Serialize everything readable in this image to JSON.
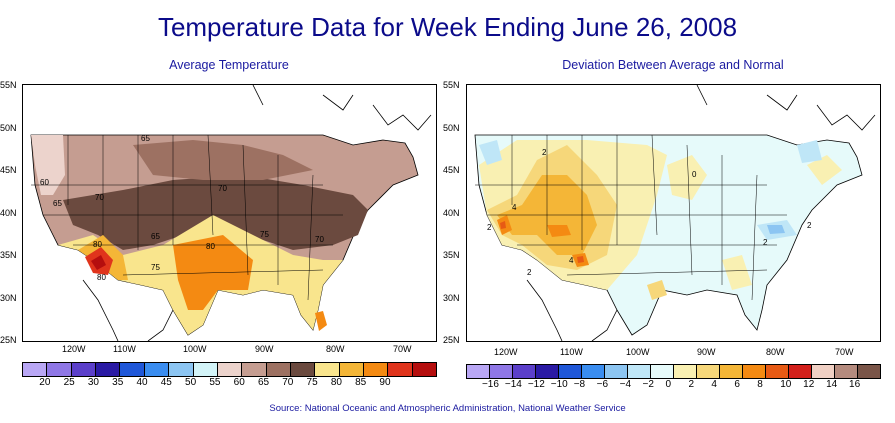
{
  "title": "Temperature Data for Week Ending June 26, 2008",
  "left_map": {
    "subtitle": "Average Temperature",
    "lat_labels": [
      "55N",
      "50N",
      "45N",
      "40N",
      "35N",
      "30N",
      "25N"
    ],
    "lon_labels": [
      "120W",
      "110W",
      "100W",
      "90W",
      "80W",
      "70W"
    ],
    "contour_labels": [
      "65",
      "60",
      "65",
      "70",
      "70",
      "65",
      "80",
      "75",
      "75",
      "70",
      "80",
      "80"
    ],
    "legend": {
      "ticks": [
        "20",
        "25",
        "30",
        "35",
        "40",
        "45",
        "50",
        "55",
        "60",
        "65",
        "70",
        "75",
        "80",
        "85",
        "90"
      ],
      "colors": [
        "#b9a7f5",
        "#8f77e6",
        "#5b3fca",
        "#2a1aa4",
        "#1f57d8",
        "#3a8df0",
        "#8cc5f2",
        "#d3f4f8",
        "#ecd3cc",
        "#c59d91",
        "#9d7162",
        "#6b4a3f",
        "#f9e58d",
        "#f4b637",
        "#f48a12",
        "#e0341c",
        "#b50e0e"
      ]
    }
  },
  "right_map": {
    "subtitle": "Deviation Between Average and Normal",
    "lat_labels": [
      "55N",
      "50N",
      "45N",
      "40N",
      "35N",
      "30N",
      "25N"
    ],
    "lon_labels": [
      "120W",
      "110W",
      "100W",
      "90W",
      "80W",
      "70W"
    ],
    "contour_labels": [
      "2",
      "2",
      "4",
      "2",
      "4",
      "0",
      "2",
      "2"
    ],
    "legend": {
      "ticks": [
        "−16",
        "−14",
        "−12",
        "−10",
        "−8",
        "−6",
        "−4",
        "−2",
        "0",
        "2",
        "4",
        "6",
        "8",
        "10",
        "12",
        "14",
        "16"
      ],
      "colors": [
        "#b9a7f5",
        "#8f77e6",
        "#5b3fca",
        "#2a1aa4",
        "#1f57d8",
        "#3a8df0",
        "#8cc5f2",
        "#bfe6f7",
        "#e6fafa",
        "#f9f0b2",
        "#f6d77a",
        "#f4b637",
        "#f48a12",
        "#e75a14",
        "#d3201b",
        "#f0d0c4",
        "#b58b7e",
        "#7a5548"
      ]
    }
  },
  "colors": {
    "title": "#0b0b8a",
    "subtitle": "#1a1aa0"
  },
  "source": "Source:  National Oceanic and Atmospheric Administration, National Weather Service"
}
